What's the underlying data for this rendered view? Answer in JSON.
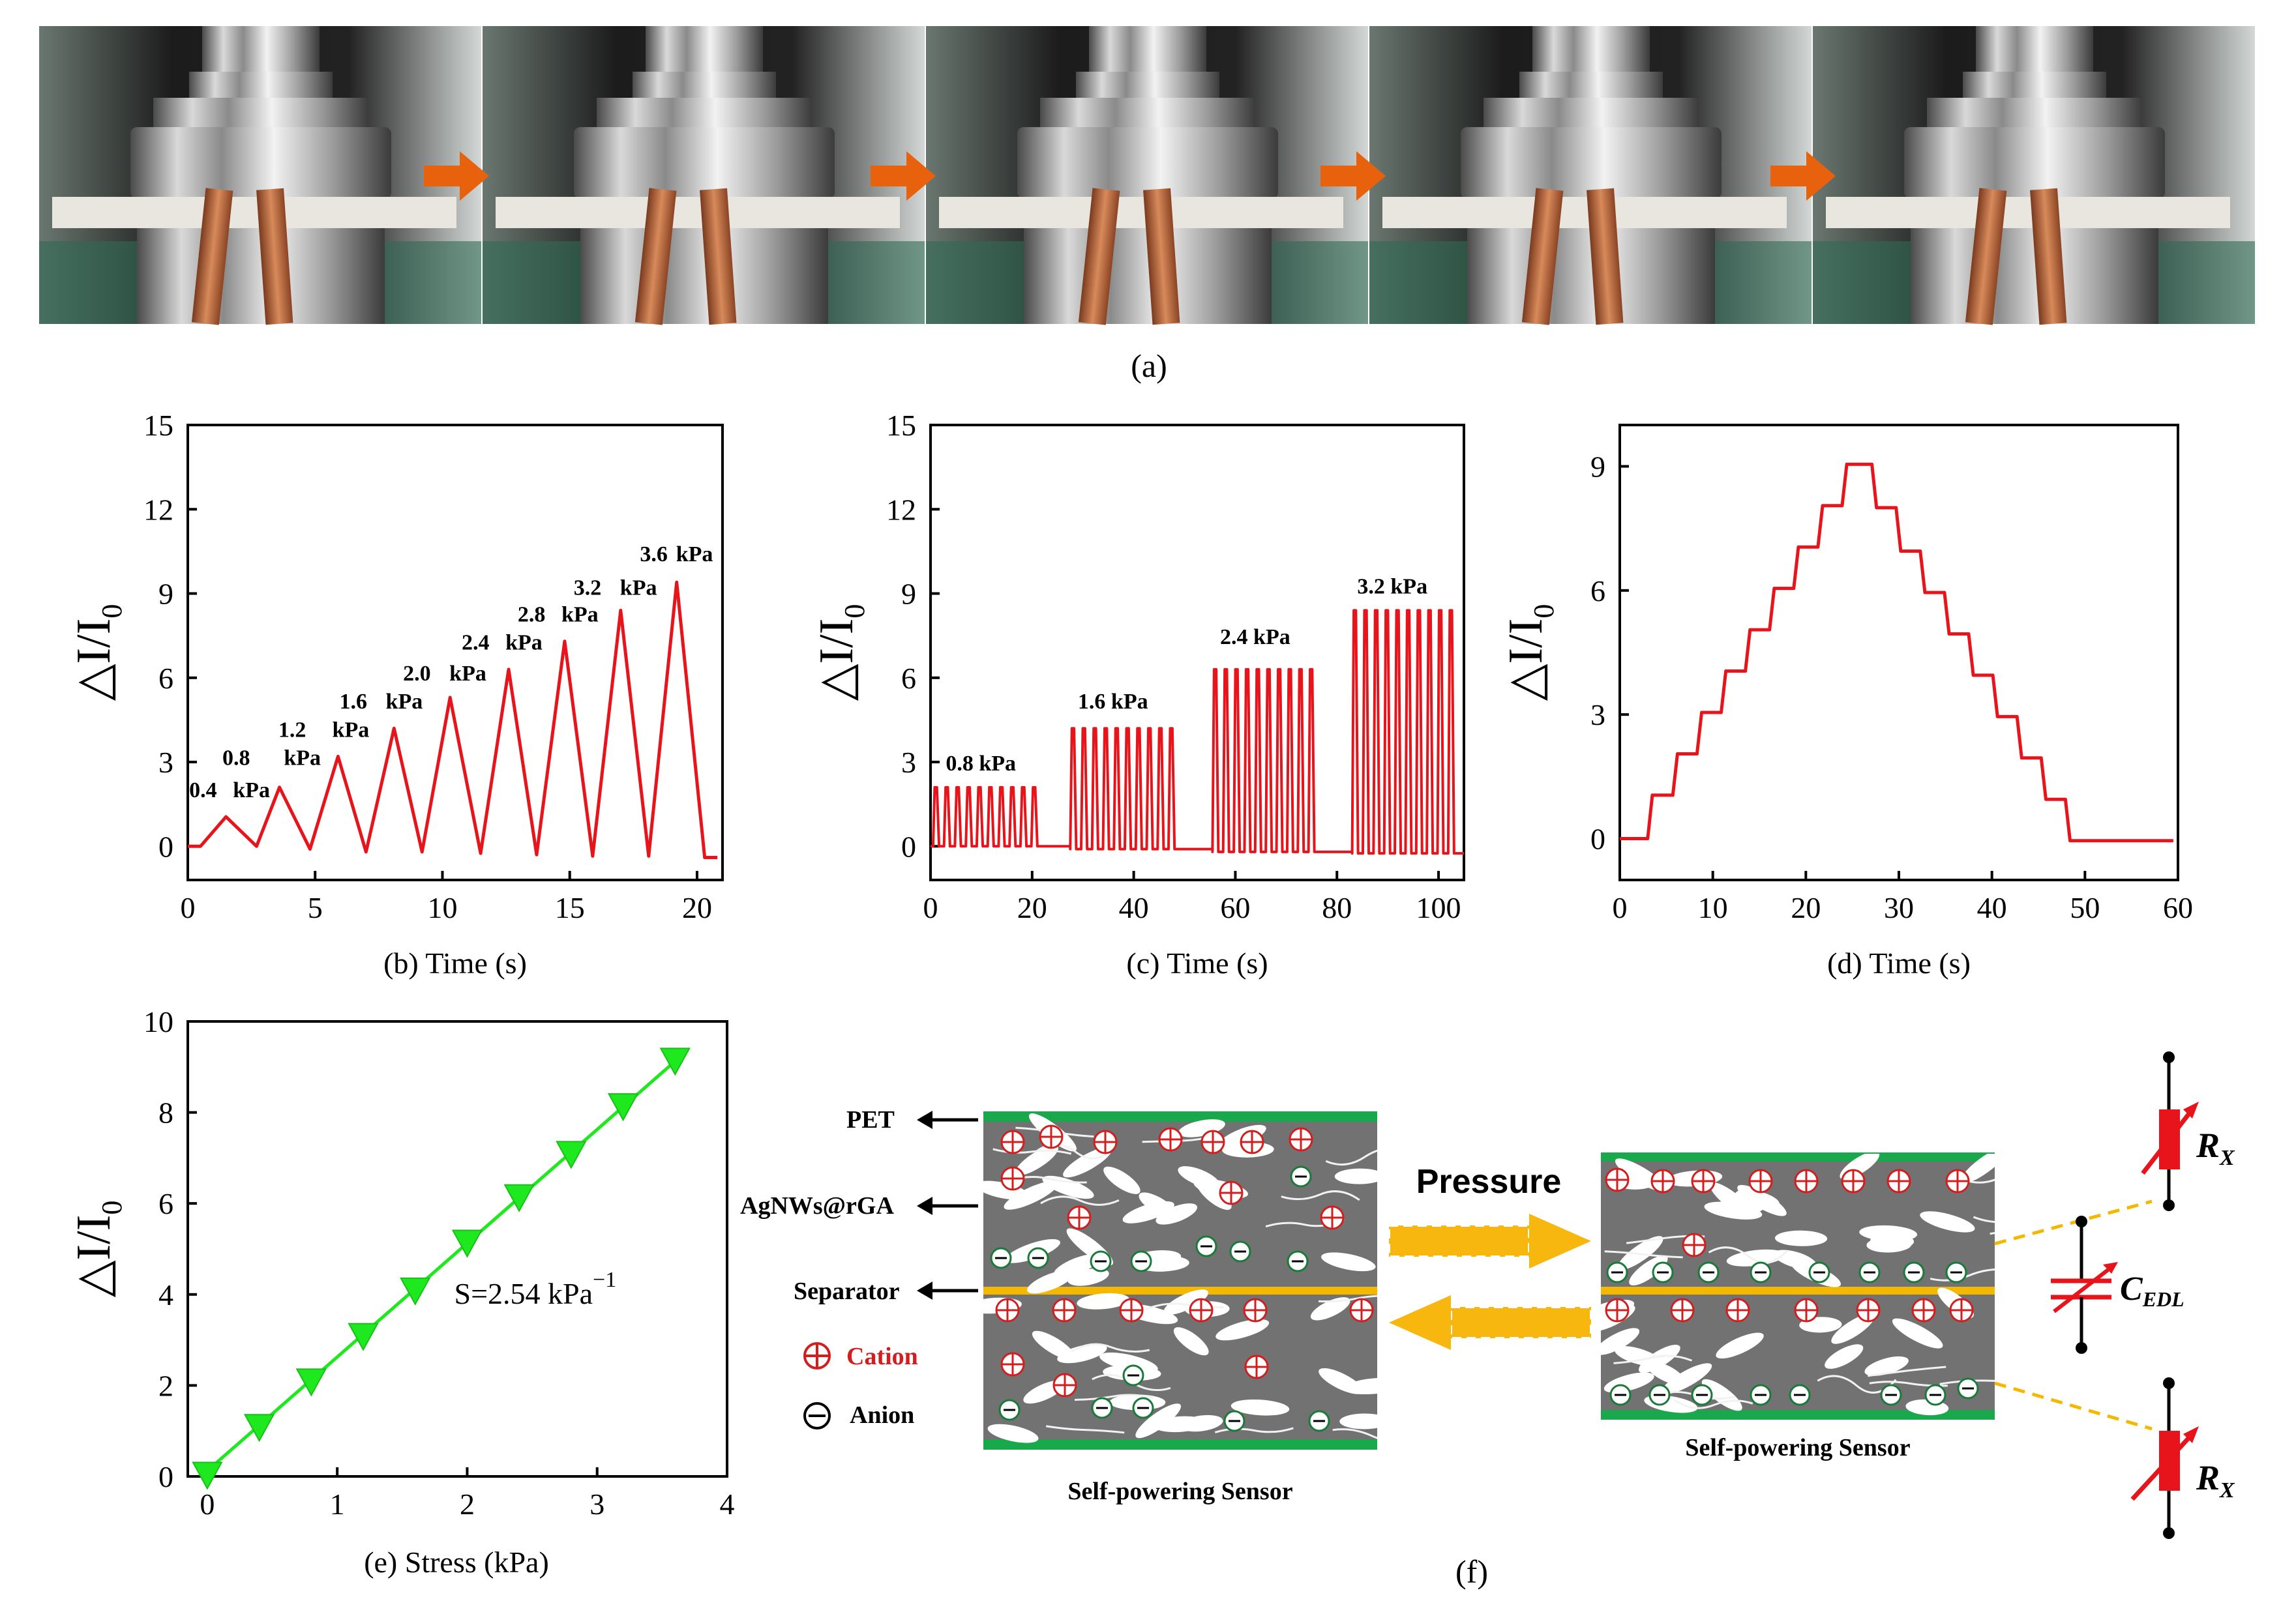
{
  "colors": {
    "curve": "#e8141b",
    "fit": "#1ee81e",
    "green_layer": "#1aa84c",
    "separator": "#f5b800",
    "pressure_arrow": "#f7b70e",
    "orange_arrow": "#e8620e",
    "gel": "#727272"
  },
  "panel_a": {
    "caption": "(a)",
    "frames": 5
  },
  "chart_data": [
    {
      "id": "b",
      "type": "line",
      "caption": "(b)",
      "xlabel": "Time (s)",
      "ylabel": "△I/I0",
      "xlim": [
        0,
        21
      ],
      "ylim": [
        -1.2,
        15
      ],
      "xticks": [
        "0",
        "5",
        "10",
        "15",
        "20"
      ],
      "yticks": [
        "0",
        "3",
        "6",
        "9",
        "12",
        "15"
      ],
      "series": [
        {
          "name": "response",
          "points": [
            [
              0,
              0
            ],
            [
              0.5,
              0
            ],
            [
              1.5,
              1.05
            ],
            [
              2.7,
              0
            ],
            [
              3.6,
              2.1
            ],
            [
              4.8,
              -0.1
            ],
            [
              5.9,
              3.2
            ],
            [
              7.0,
              -0.2
            ],
            [
              8.1,
              4.2
            ],
            [
              9.2,
              -0.2
            ],
            [
              10.3,
              5.3
            ],
            [
              11.5,
              -0.25
            ],
            [
              12.6,
              6.3
            ],
            [
              13.7,
              -0.3
            ],
            [
              14.8,
              7.3
            ],
            [
              15.9,
              -0.35
            ],
            [
              17.0,
              8.4
            ],
            [
              18.1,
              -0.35
            ],
            [
              19.2,
              9.4
            ],
            [
              20.3,
              -0.4
            ],
            [
              20.8,
              -0.4
            ]
          ]
        }
      ],
      "annotations": [
        {
          "text": "0.4",
          "x": 0.6,
          "y": 1.75
        },
        {
          "text": "kPa",
          "x": 2.5,
          "y": 1.75
        },
        {
          "text": "0.8",
          "x": 1.9,
          "y": 2.9
        },
        {
          "text": "kPa",
          "x": 4.5,
          "y": 2.9
        },
        {
          "text": "1.2",
          "x": 4.1,
          "y": 3.9
        },
        {
          "text": "kPa",
          "x": 6.4,
          "y": 3.9
        },
        {
          "text": "1.6",
          "x": 6.5,
          "y": 4.9
        },
        {
          "text": "kPa",
          "x": 8.5,
          "y": 4.9
        },
        {
          "text": "2.0",
          "x": 9.0,
          "y": 5.9
        },
        {
          "text": "kPa",
          "x": 11.0,
          "y": 5.9
        },
        {
          "text": "2.4",
          "x": 11.3,
          "y": 7.0
        },
        {
          "text": "kPa",
          "x": 13.2,
          "y": 7.0
        },
        {
          "text": "2.8",
          "x": 13.5,
          "y": 8.0
        },
        {
          "text": "kPa",
          "x": 15.4,
          "y": 8.0
        },
        {
          "text": "3.2",
          "x": 15.7,
          "y": 8.95
        },
        {
          "text": "kPa",
          "x": 17.7,
          "y": 8.95
        },
        {
          "text": "3.6",
          "x": 18.3,
          "y": 10.15
        },
        {
          "text": "kPa",
          "x": 19.9,
          "y": 10.15
        },
        {
          "text": "kPa",
          "x": 17.7,
          "y": 9.1
        }
      ]
    },
    {
      "id": "c",
      "type": "line",
      "caption": "(c)",
      "xlabel": "Time (s)",
      "ylabel": "△I/I0",
      "xlim": [
        0,
        105
      ],
      "ylim": [
        -1.2,
        15
      ],
      "xticks": [
        "0",
        "20",
        "40",
        "60",
        "80",
        "100"
      ],
      "yticks": [
        "0",
        "3",
        "6",
        "9",
        "12",
        "15"
      ],
      "bursts": [
        {
          "pressure": "0.8 kPa",
          "start": 0.5,
          "end": 22,
          "cycles": 10,
          "peak": 2.1,
          "trough": 0,
          "flat_to": 27.5
        },
        {
          "pressure": "1.6 kPa",
          "start": 27.5,
          "end": 49,
          "cycles": 10,
          "peak": 4.2,
          "trough": -0.1,
          "flat_to": 55.5
        },
        {
          "pressure": "2.4 kPa",
          "start": 55.5,
          "end": 76.5,
          "cycles": 10,
          "peak": 6.3,
          "trough": -0.2,
          "flat_to": 83
        },
        {
          "pressure": "3.2 kPa",
          "start": 83,
          "end": 104,
          "cycles": 10,
          "peak": 8.4,
          "trough": -0.25,
          "flat_to": 105
        }
      ],
      "annotations": [
        {
          "text": "0.8  kPa",
          "x": 3,
          "y": 2.7
        },
        {
          "text": "1.6  kPa",
          "x": 29,
          "y": 4.9
        },
        {
          "text": "2.4  kPa",
          "x": 57,
          "y": 7.2
        },
        {
          "text": "3.2  kPa",
          "x": 84,
          "y": 9.0
        }
      ]
    },
    {
      "id": "d",
      "type": "line",
      "caption": "(d)",
      "xlabel": "Time (s)",
      "ylabel": "△I/I0",
      "xlim": [
        0,
        60
      ],
      "ylim": [
        -1,
        10
      ],
      "xticks": [
        "0",
        "10",
        "20",
        "30",
        "40",
        "50",
        "60"
      ],
      "yticks": [
        "0",
        "3",
        "6",
        "9"
      ],
      "series": [
        {
          "name": "staircase",
          "steps": [
            [
              0,
              0
            ],
            [
              3.5,
              1
            ],
            [
              6,
              2
            ],
            [
              8.5,
              3
            ],
            [
              11,
              4
            ],
            [
              13.5,
              5
            ],
            [
              16,
              6
            ],
            [
              18.5,
              7
            ],
            [
              21,
              8
            ],
            [
              23.5,
              9
            ],
            [
              26.5,
              8
            ],
            [
              29,
              7
            ],
            [
              31.5,
              6
            ],
            [
              34,
              5
            ],
            [
              36.5,
              4
            ],
            [
              39,
              3
            ],
            [
              41.5,
              2
            ],
            [
              44,
              1
            ],
            [
              46.5,
              0
            ]
          ],
          "rise": 0.6,
          "end": 59.5
        }
      ],
      "display_steps": [
        [
          0,
          0
        ],
        [
          3.5,
          1.05
        ],
        [
          6.2,
          2.05
        ],
        [
          8.8,
          3.05
        ],
        [
          11.4,
          4.05
        ],
        [
          14,
          5.05
        ],
        [
          16.6,
          6.05
        ],
        [
          19.2,
          7.05
        ],
        [
          21.8,
          8.05
        ],
        [
          24.4,
          9.05
        ],
        [
          26.5,
          9.05
        ],
        [
          27.6,
          8.0
        ],
        [
          30.2,
          6.95
        ],
        [
          32.8,
          5.95
        ],
        [
          35.4,
          4.95
        ],
        [
          38.0,
          3.95
        ],
        [
          40.6,
          2.95
        ],
        [
          43.2,
          1.95
        ],
        [
          45.8,
          0.95
        ],
        [
          48.4,
          -0.05
        ]
      ],
      "stop": 59.5
    },
    {
      "id": "e",
      "type": "scatter",
      "caption": "(e)",
      "xlabel": "Stress (kPa)",
      "ylabel": "△I/I0",
      "xlim": [
        -0.15,
        4
      ],
      "ylim": [
        0,
        10
      ],
      "xticks": [
        "0",
        "1",
        "2",
        "3",
        "4"
      ],
      "yticks": [
        "0",
        "2",
        "4",
        "6",
        "8",
        "10"
      ],
      "x": [
        0,
        0.4,
        0.8,
        1.2,
        1.6,
        2.0,
        2.4,
        2.8,
        3.2,
        3.6
      ],
      "y": [
        0.05,
        1.1,
        2.1,
        3.1,
        4.1,
        5.15,
        6.15,
        7.1,
        8.15,
        9.15
      ],
      "fit_text": "S=2.54 kPa",
      "fit_exp": "−1"
    }
  ],
  "panel_f": {
    "caption": "(f)",
    "labels": {
      "pet": "PET",
      "agnws": "AgNWs@rGA",
      "separator": "Separator",
      "cation": "Cation",
      "anion": "Anion"
    },
    "pressure_label": "Pressure",
    "sensor_left": "Self-powering Sensor",
    "sensor_right": "Self-powering Sensor",
    "circuit": {
      "rx": "R",
      "rx_sub": "X",
      "cedl": "C",
      "cedl_sub": "EDL"
    }
  }
}
